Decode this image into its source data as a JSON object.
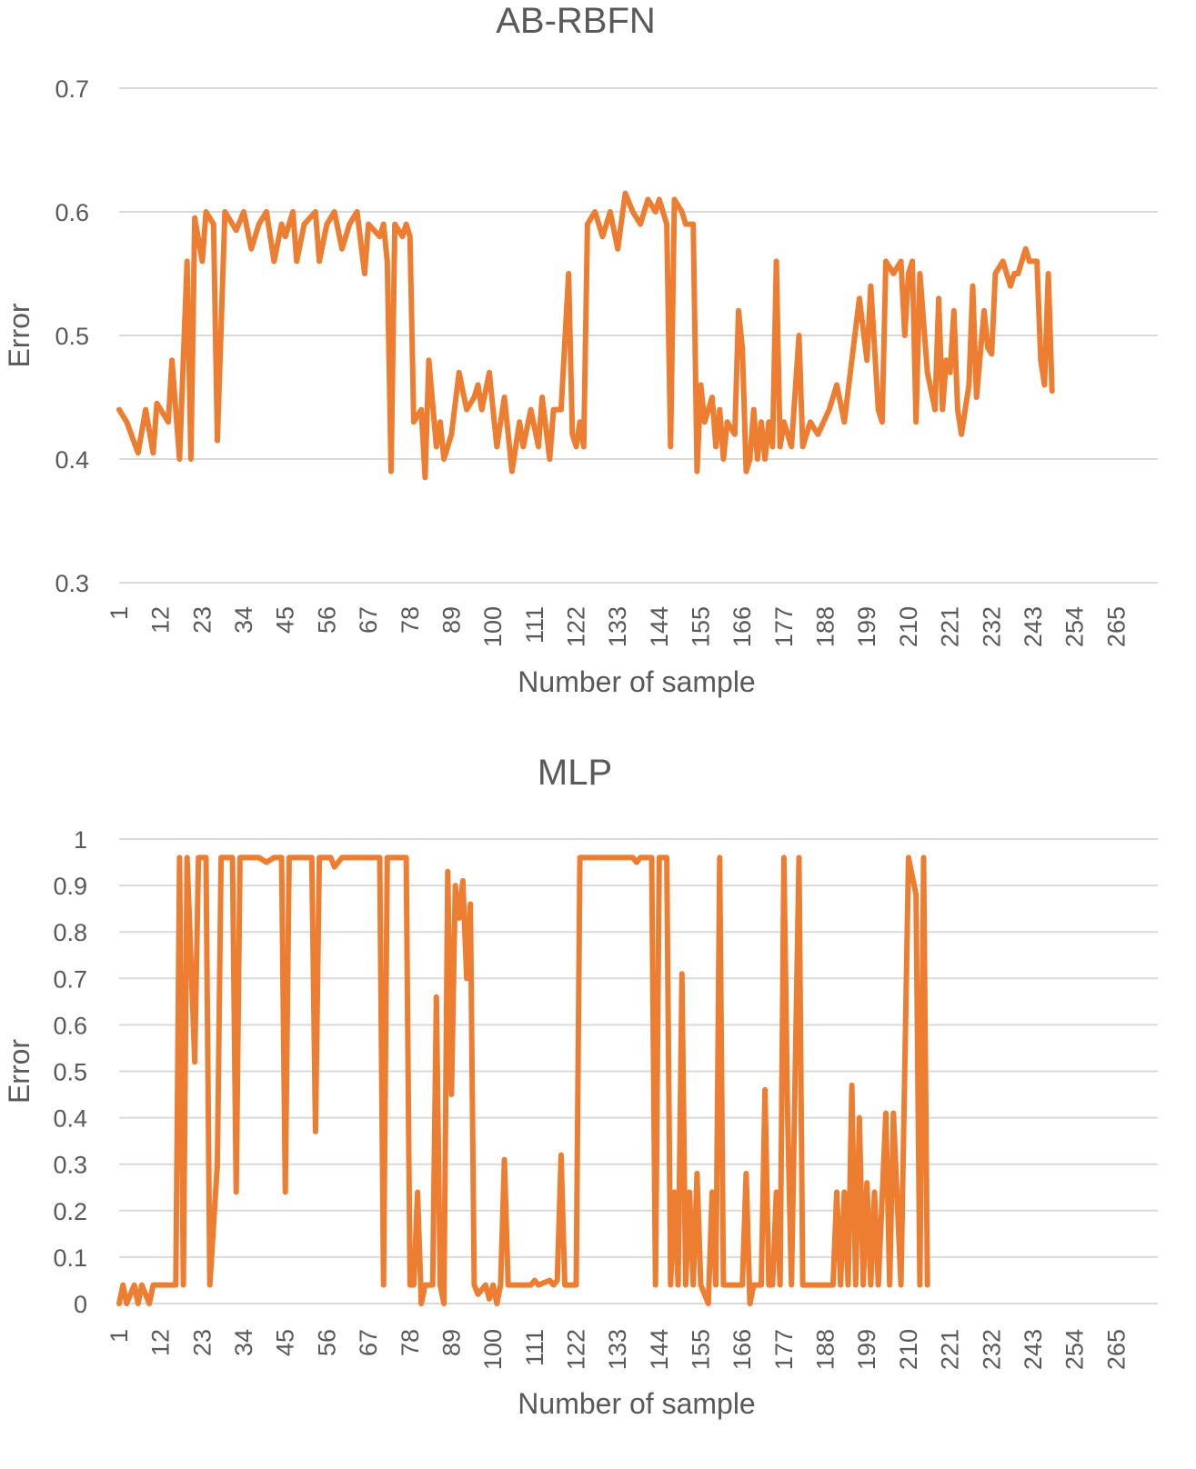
{
  "chart_data": [
    {
      "type": "line",
      "title": "AB-RBFN",
      "xlabel": "Number of sample",
      "ylabel": "Error",
      "ylim": [
        0.3,
        0.7
      ],
      "y_ticks": [
        "0.3",
        "0.4",
        "0.5",
        "0.6",
        "0.7"
      ],
      "x_ticks": [
        "1",
        "12",
        "23",
        "34",
        "45",
        "56",
        "67",
        "78",
        "89",
        "100",
        "111",
        "122",
        "133",
        "144",
        "155",
        "166",
        "177",
        "188",
        "199",
        "210",
        "221",
        "232",
        "243",
        "254",
        "265"
      ],
      "x_count": 276,
      "grid": true,
      "color": "#ED7D31",
      "keypoints": [
        [
          1,
          0.44
        ],
        [
          3,
          0.43
        ],
        [
          6,
          0.405
        ],
        [
          8,
          0.44
        ],
        [
          10,
          0.405
        ],
        [
          11,
          0.445
        ],
        [
          14,
          0.43
        ],
        [
          15,
          0.48
        ],
        [
          17,
          0.4
        ],
        [
          19,
          0.56
        ],
        [
          20,
          0.4
        ],
        [
          21,
          0.595
        ],
        [
          23,
          0.56
        ],
        [
          24,
          0.6
        ],
        [
          26,
          0.59
        ],
        [
          27,
          0.415
        ],
        [
          29,
          0.6
        ],
        [
          31,
          0.59
        ],
        [
          32,
          0.585
        ],
        [
          34,
          0.6
        ],
        [
          36,
          0.57
        ],
        [
          38,
          0.59
        ],
        [
          40,
          0.6
        ],
        [
          42,
          0.56
        ],
        [
          44,
          0.59
        ],
        [
          45,
          0.58
        ],
        [
          47,
          0.6
        ],
        [
          48,
          0.56
        ],
        [
          50,
          0.59
        ],
        [
          53,
          0.6
        ],
        [
          54,
          0.56
        ],
        [
          56,
          0.59
        ],
        [
          58,
          0.6
        ],
        [
          60,
          0.57
        ],
        [
          62,
          0.59
        ],
        [
          64,
          0.6
        ],
        [
          66,
          0.55
        ],
        [
          67,
          0.59
        ],
        [
          70,
          0.58
        ],
        [
          71,
          0.59
        ],
        [
          72,
          0.56
        ],
        [
          73,
          0.39
        ],
        [
          74,
          0.59
        ],
        [
          76,
          0.58
        ],
        [
          77,
          0.59
        ],
        [
          78,
          0.58
        ],
        [
          79,
          0.43
        ],
        [
          81,
          0.44
        ],
        [
          82,
          0.385
        ],
        [
          83,
          0.48
        ],
        [
          85,
          0.41
        ],
        [
          86,
          0.43
        ],
        [
          87,
          0.4
        ],
        [
          89,
          0.42
        ],
        [
          91,
          0.47
        ],
        [
          93,
          0.44
        ],
        [
          95,
          0.45
        ],
        [
          96,
          0.46
        ],
        [
          97,
          0.44
        ],
        [
          99,
          0.47
        ],
        [
          100,
          0.44
        ],
        [
          101,
          0.41
        ],
        [
          103,
          0.45
        ],
        [
          105,
          0.39
        ],
        [
          107,
          0.43
        ],
        [
          108,
          0.41
        ],
        [
          110,
          0.44
        ],
        [
          112,
          0.41
        ],
        [
          113,
          0.45
        ],
        [
          115,
          0.4
        ],
        [
          116,
          0.44
        ],
        [
          118,
          0.44
        ],
        [
          120,
          0.55
        ],
        [
          121,
          0.42
        ],
        [
          122,
          0.41
        ],
        [
          123,
          0.43
        ],
        [
          124,
          0.41
        ],
        [
          125,
          0.59
        ],
        [
          127,
          0.6
        ],
        [
          129,
          0.58
        ],
        [
          131,
          0.6
        ],
        [
          133,
          0.57
        ],
        [
          135,
          0.615
        ],
        [
          137,
          0.6
        ],
        [
          139,
          0.59
        ],
        [
          141,
          0.61
        ],
        [
          143,
          0.6
        ],
        [
          144,
          0.61
        ],
        [
          146,
          0.59
        ],
        [
          147,
          0.41
        ],
        [
          148,
          0.61
        ],
        [
          150,
          0.6
        ],
        [
          151,
          0.59
        ],
        [
          153,
          0.59
        ],
        [
          154,
          0.39
        ],
        [
          155,
          0.46
        ],
        [
          156,
          0.43
        ],
        [
          158,
          0.45
        ],
        [
          159,
          0.41
        ],
        [
          160,
          0.44
        ],
        [
          161,
          0.4
        ],
        [
          162,
          0.43
        ],
        [
          164,
          0.42
        ],
        [
          165,
          0.52
        ],
        [
          166,
          0.49
        ],
        [
          167,
          0.39
        ],
        [
          168,
          0.4
        ],
        [
          169,
          0.44
        ],
        [
          170,
          0.4
        ],
        [
          171,
          0.43
        ],
        [
          172,
          0.4
        ],
        [
          173,
          0.43
        ],
        [
          174,
          0.41
        ],
        [
          175,
          0.56
        ],
        [
          176,
          0.41
        ],
        [
          177,
          0.43
        ],
        [
          179,
          0.41
        ],
        [
          181,
          0.5
        ],
        [
          182,
          0.41
        ],
        [
          184,
          0.43
        ],
        [
          186,
          0.42
        ],
        [
          189,
          0.44
        ],
        [
          191,
          0.46
        ],
        [
          193,
          0.43
        ],
        [
          195,
          0.48
        ],
        [
          197,
          0.53
        ],
        [
          199,
          0.48
        ],
        [
          200,
          0.54
        ],
        [
          202,
          0.44
        ],
        [
          203,
          0.43
        ],
        [
          204,
          0.56
        ],
        [
          206,
          0.55
        ],
        [
          208,
          0.56
        ],
        [
          209,
          0.5
        ],
        [
          210,
          0.55
        ],
        [
          211,
          0.56
        ],
        [
          212,
          0.43
        ],
        [
          213,
          0.55
        ],
        [
          215,
          0.47
        ],
        [
          217,
          0.44
        ],
        [
          218,
          0.53
        ],
        [
          219,
          0.44
        ],
        [
          220,
          0.48
        ],
        [
          221,
          0.47
        ],
        [
          222,
          0.52
        ],
        [
          223,
          0.44
        ],
        [
          224,
          0.42
        ],
        [
          226,
          0.46
        ],
        [
          227,
          0.54
        ],
        [
          228,
          0.45
        ],
        [
          230,
          0.52
        ],
        [
          231,
          0.49
        ],
        [
          232,
          0.485
        ],
        [
          233,
          0.55
        ],
        [
          235,
          0.56
        ],
        [
          237,
          0.54
        ],
        [
          238,
          0.55
        ],
        [
          239,
          0.55
        ],
        [
          241,
          0.57
        ],
        [
          242,
          0.56
        ],
        [
          244,
          0.56
        ],
        [
          245,
          0.48
        ],
        [
          246,
          0.46
        ],
        [
          247,
          0.55
        ],
        [
          248,
          0.455
        ]
      ]
    },
    {
      "type": "line",
      "title": "MLP",
      "xlabel": "Number of sample",
      "ylabel": "Error",
      "ylim": [
        0,
        1
      ],
      "y_ticks": [
        "0",
        "0.1",
        "0.2",
        "0.3",
        "0.4",
        "0.5",
        "0.6",
        "0.7",
        "0.8",
        "0.9",
        "1"
      ],
      "x_ticks": [
        "1",
        "12",
        "23",
        "34",
        "45",
        "56",
        "67",
        "78",
        "89",
        "100",
        "111",
        "122",
        "133",
        "144",
        "155",
        "166",
        "177",
        "188",
        "199",
        "210",
        "221",
        "232",
        "243",
        "254",
        "265"
      ],
      "x_count": 276,
      "grid": true,
      "color": "#ED7D31",
      "keypoints": [
        [
          1,
          0.0
        ],
        [
          2,
          0.04
        ],
        [
          3,
          0.0
        ],
        [
          5,
          0.04
        ],
        [
          6,
          0.0
        ],
        [
          7,
          0.04
        ],
        [
          9,
          0.0
        ],
        [
          10,
          0.04
        ],
        [
          12,
          0.04
        ],
        [
          16,
          0.04
        ],
        [
          17,
          0.96
        ],
        [
          18,
          0.04
        ],
        [
          19,
          0.96
        ],
        [
          21,
          0.52
        ],
        [
          22,
          0.96
        ],
        [
          24,
          0.96
        ],
        [
          25,
          0.04
        ],
        [
          27,
          0.3
        ],
        [
          28,
          0.96
        ],
        [
          31,
          0.96
        ],
        [
          32,
          0.24
        ],
        [
          33,
          0.96
        ],
        [
          38,
          0.96
        ],
        [
          40,
          0.95
        ],
        [
          42,
          0.96
        ],
        [
          44,
          0.96
        ],
        [
          45,
          0.24
        ],
        [
          46,
          0.96
        ],
        [
          52,
          0.96
        ],
        [
          53,
          0.37
        ],
        [
          54,
          0.96
        ],
        [
          57,
          0.96
        ],
        [
          58,
          0.94
        ],
        [
          60,
          0.96
        ],
        [
          70,
          0.96
        ],
        [
          71,
          0.04
        ],
        [
          72,
          0.96
        ],
        [
          77,
          0.96
        ],
        [
          78,
          0.04
        ],
        [
          79,
          0.04
        ],
        [
          80,
          0.24
        ],
        [
          81,
          0.0
        ],
        [
          82,
          0.04
        ],
        [
          84,
          0.04
        ],
        [
          85,
          0.66
        ],
        [
          86,
          0.04
        ],
        [
          87,
          0.0
        ],
        [
          88,
          0.93
        ],
        [
          89,
          0.45
        ],
        [
          90,
          0.9
        ],
        [
          91,
          0.83
        ],
        [
          92,
          0.91
        ],
        [
          93,
          0.7
        ],
        [
          94,
          0.86
        ],
        [
          95,
          0.04
        ],
        [
          96,
          0.02
        ],
        [
          98,
          0.04
        ],
        [
          99,
          0.01
        ],
        [
          100,
          0.04
        ],
        [
          101,
          0.0
        ],
        [
          102,
          0.04
        ],
        [
          103,
          0.31
        ],
        [
          104,
          0.04
        ],
        [
          110,
          0.04
        ],
        [
          111,
          0.05
        ],
        [
          112,
          0.04
        ],
        [
          115,
          0.05
        ],
        [
          116,
          0.04
        ],
        [
          117,
          0.05
        ],
        [
          118,
          0.32
        ],
        [
          119,
          0.04
        ],
        [
          122,
          0.04
        ],
        [
          123,
          0.96
        ],
        [
          137,
          0.96
        ],
        [
          138,
          0.95
        ],
        [
          139,
          0.96
        ],
        [
          142,
          0.96
        ],
        [
          143,
          0.04
        ],
        [
          144,
          0.96
        ],
        [
          146,
          0.96
        ],
        [
          147,
          0.04
        ],
        [
          148,
          0.24
        ],
        [
          149,
          0.04
        ],
        [
          150,
          0.71
        ],
        [
          151,
          0.04
        ],
        [
          152,
          0.24
        ],
        [
          153,
          0.04
        ],
        [
          154,
          0.28
        ],
        [
          155,
          0.04
        ],
        [
          157,
          0.0
        ],
        [
          158,
          0.24
        ],
        [
          159,
          0.04
        ],
        [
          160,
          0.96
        ],
        [
          161,
          0.04
        ],
        [
          166,
          0.04
        ],
        [
          167,
          0.28
        ],
        [
          168,
          0.0
        ],
        [
          169,
          0.04
        ],
        [
          171,
          0.04
        ],
        [
          172,
          0.46
        ],
        [
          173,
          0.04
        ],
        [
          174,
          0.04
        ],
        [
          175,
          0.24
        ],
        [
          176,
          0.04
        ],
        [
          177,
          0.96
        ],
        [
          178,
          0.4
        ],
        [
          179,
          0.04
        ],
        [
          181,
          0.96
        ],
        [
          182,
          0.04
        ],
        [
          190,
          0.04
        ],
        [
          191,
          0.24
        ],
        [
          192,
          0.04
        ],
        [
          193,
          0.24
        ],
        [
          194,
          0.04
        ],
        [
          195,
          0.47
        ],
        [
          196,
          0.04
        ],
        [
          197,
          0.4
        ],
        [
          198,
          0.04
        ],
        [
          199,
          0.26
        ],
        [
          200,
          0.04
        ],
        [
          201,
          0.24
        ],
        [
          202,
          0.04
        ],
        [
          204,
          0.41
        ],
        [
          205,
          0.04
        ],
        [
          206,
          0.41
        ],
        [
          208,
          0.04
        ],
        [
          210,
          0.96
        ],
        [
          212,
          0.88
        ],
        [
          213,
          0.04
        ],
        [
          214,
          0.96
        ],
        [
          215,
          0.04
        ]
      ]
    }
  ]
}
